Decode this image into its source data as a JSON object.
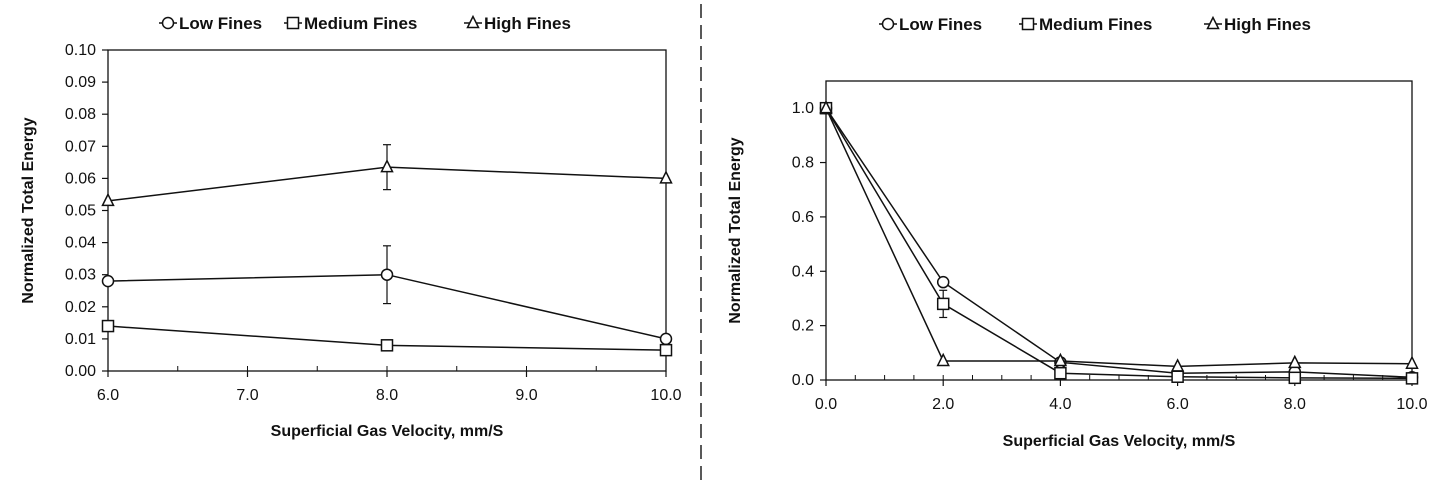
{
  "chart_data": [
    {
      "type": "line",
      "x": [
        6.0,
        8.0,
        10.0
      ],
      "xlim": [
        6.0,
        10.0
      ],
      "ylim": [
        0.0,
        0.1
      ],
      "xticks": [
        "6.0",
        "7.0",
        "8.0",
        "9.0",
        "10.0"
      ],
      "yticks": [
        "0.00",
        "0.01",
        "0.02",
        "0.03",
        "0.04",
        "0.05",
        "0.06",
        "0.07",
        "0.08",
        "0.09",
        "0.10"
      ],
      "xlabel": "Superficial  Gas Velocity, mm/S",
      "ylabel": "Normalized Total Energy",
      "legend_position": "top",
      "series": [
        {
          "name": "Low Fines",
          "marker": "circle",
          "values": [
            0.028,
            0.03,
            0.01
          ],
          "error": [
            0,
            0.009,
            0
          ]
        },
        {
          "name": "Medium Fines",
          "marker": "square",
          "values": [
            0.014,
            0.008,
            0.0065
          ],
          "error": [
            0,
            0.001,
            0
          ]
        },
        {
          "name": "High Fines",
          "marker": "triangle",
          "values": [
            0.053,
            0.0635,
            0.06
          ],
          "error": [
            0,
            0.007,
            0
          ]
        }
      ]
    },
    {
      "type": "line",
      "x": [
        0.0,
        2.0,
        4.0,
        6.0,
        8.0,
        10.0
      ],
      "xlim": [
        0.0,
        10.0
      ],
      "ylim": [
        0.0,
        1.1
      ],
      "xticks": [
        "0.0",
        "2.0",
        "4.0",
        "6.0",
        "8.0",
        "10.0"
      ],
      "yticks": [
        "0.0",
        "0.2",
        "0.4",
        "0.6",
        "0.8",
        "1.0"
      ],
      "xlabel": "Superficial  Gas Velocity, mm/S",
      "ylabel": "Normalized Total Energy",
      "legend_position": "top",
      "series": [
        {
          "name": "Low Fines",
          "marker": "circle",
          "values": [
            1.0,
            0.36,
            0.065,
            0.025,
            0.03,
            0.01
          ],
          "error": [
            0,
            0,
            0,
            0,
            0,
            0
          ]
        },
        {
          "name": "Medium Fines",
          "marker": "square",
          "values": [
            1.0,
            0.28,
            0.025,
            0.012,
            0.008,
            0.006
          ],
          "error": [
            0,
            0.05,
            0,
            0,
            0,
            0
          ]
        },
        {
          "name": "High Fines",
          "marker": "triangle",
          "values": [
            1.0,
            0.07,
            0.07,
            0.05,
            0.063,
            0.06
          ],
          "error": [
            0,
            0,
            0,
            0,
            0,
            0
          ]
        }
      ]
    }
  ]
}
